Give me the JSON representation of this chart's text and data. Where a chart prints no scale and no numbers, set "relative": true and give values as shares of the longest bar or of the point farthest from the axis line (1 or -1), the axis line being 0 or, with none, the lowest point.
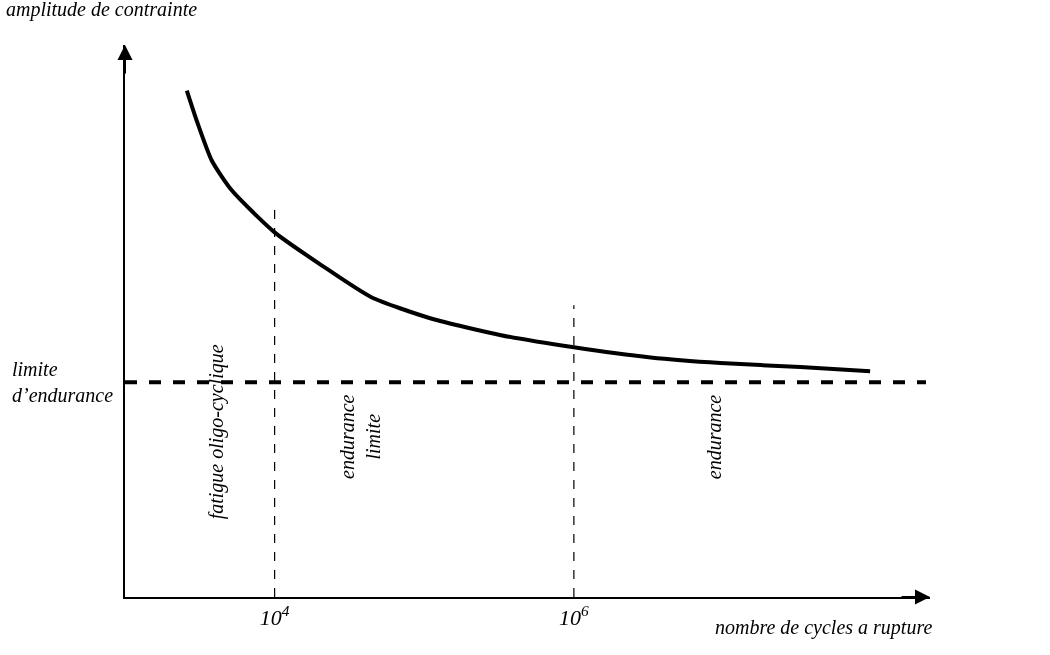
{
  "chart_data": {
    "type": "line",
    "relative": true,
    "xlabel": "nombre de cycles a rupture",
    "ylabel": "amplitude de contrainte",
    "log": "x",
    "xlim": [
      1000,
      240000000
    ],
    "xticks": [
      {
        "value": 10000,
        "label": "10$^{4}$"
      },
      {
        "value": 1000000,
        "label": "10$^{6}$"
      }
    ],
    "x": [
      2590,
      3020,
      3800,
      5170,
      10000,
      20600,
      44300,
      111000,
      326000,
      1000000,
      3260000,
      9550000,
      32600000,
      95500000
    ],
    "series": [
      {
        "color": "#000000",
        "values": [
          1,
          0.94,
          0.862,
          0.803,
          0.72,
          0.655,
          0.592,
          0.55,
          0.517,
          0.493,
          0.473,
          0.462,
          0.454,
          0.446
        ]
      }
    ],
    "ref_lines": [
      {
        "axis": "y",
        "value": 0.424,
        "label": "limite\nd’endurance",
        "line_style": "dashed",
        "color": "#000000"
      },
      {
        "axis": "x",
        "value": 10000,
        "line_style": "dashed",
        "color": "#000000"
      },
      {
        "axis": "x",
        "value": 1000000,
        "line_style": "dashed",
        "color": "#000000"
      }
    ],
    "annotations": [
      "fatigue oligo-cyclique",
      "endurance\nlimite",
      "endurance"
    ],
    "legend": false,
    "marker": "none",
    "line_style": "solid"
  }
}
